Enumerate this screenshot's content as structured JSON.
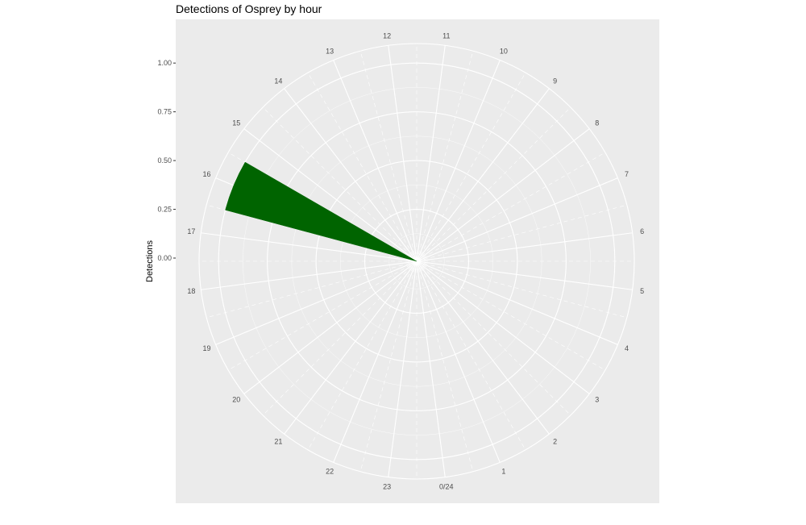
{
  "chart_data": {
    "type": "bar",
    "coord": "polar",
    "title": "Detections of Osprey by hour",
    "xlabel": "",
    "ylabel": "Detections",
    "categories": [
      "0/24",
      "1",
      "2",
      "3",
      "4",
      "5",
      "6",
      "7",
      "8",
      "9",
      "10",
      "11",
      "12",
      "13",
      "14",
      "15",
      "16",
      "17",
      "18",
      "19",
      "20",
      "21",
      "22",
      "23"
    ],
    "values": [
      0,
      0,
      0,
      0,
      0,
      0,
      0,
      0,
      0,
      0,
      0,
      0,
      0,
      0,
      0,
      0,
      1,
      0,
      0,
      0,
      0,
      0,
      0,
      0
    ],
    "ylim": [
      0,
      1.1
    ],
    "y_ticks": [
      "0.00",
      "0.25",
      "0.50",
      "0.75",
      "1.00"
    ],
    "y_tick_values": [
      0,
      0.25,
      0.5,
      0.75,
      1.0
    ],
    "grid": true,
    "legend": "none",
    "colors": {
      "bar": "#006400",
      "panel": "#ebebeb",
      "grid": "#ffffff"
    }
  }
}
